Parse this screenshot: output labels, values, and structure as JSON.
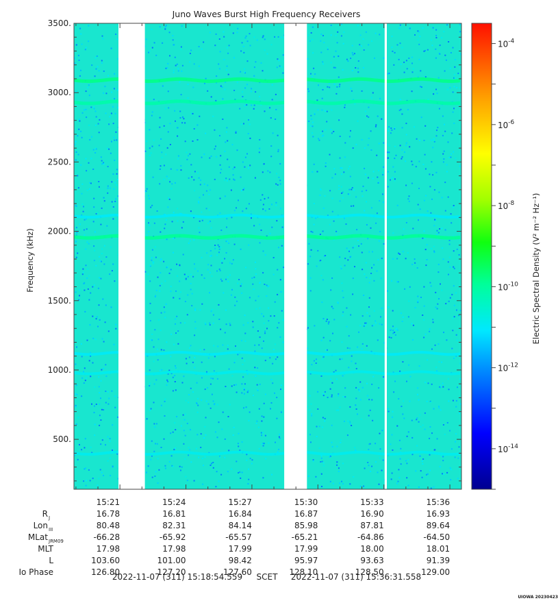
{
  "chart_data": {
    "type": "heatmap",
    "title": "Juno Waves Burst High Frequency Receivers",
    "ylabel": "Frequency (kHz)",
    "colorbar_label": "Electric Spectral Density (V² m⁻² Hz⁻¹)",
    "ylim": [
      140,
      3500
    ],
    "y_ticks": [
      {
        "value": 500,
        "label": "500."
      },
      {
        "value": 1000,
        "label": "1000."
      },
      {
        "value": 1500,
        "label": "1500."
      },
      {
        "value": 2000,
        "label": "2000."
      },
      {
        "value": 2500,
        "label": "2500."
      },
      {
        "value": 3000,
        "label": "3000."
      },
      {
        "value": 3500,
        "label": "3500."
      }
    ],
    "colorbar_log_range": [
      -15,
      -3.5
    ],
    "colorbar_ticks": [
      {
        "exp": -14,
        "base": "10",
        "sup": "-14"
      },
      {
        "exp": -12,
        "base": "10",
        "sup": "-12"
      },
      {
        "exp": -10,
        "base": "10",
        "sup": "-10"
      },
      {
        "exp": -8,
        "base": "10",
        "sup": "-8"
      },
      {
        "exp": -6,
        "base": "10",
        "sup": "-6"
      },
      {
        "exp": -4,
        "base": "10",
        "sup": "-4"
      }
    ],
    "time_range": [
      "15:18:54.559",
      "15:36:31.558"
    ],
    "x_ticks": [
      "15:21",
      "15:24",
      "15:27",
      "15:30",
      "15:33",
      "15:36"
    ],
    "data_gaps": [
      {
        "start": "15:20:56",
        "end": "15:22:08"
      },
      {
        "start": "15:28:28",
        "end": "15:29:30"
      },
      {
        "start": "15:33:02",
        "end": "15:33:08"
      }
    ],
    "background_log_level": -11.6,
    "emission_bands": [
      {
        "freq_khz": 3090,
        "log_level": -9.8
      },
      {
        "freq_khz": 2930,
        "log_level": -10.1
      },
      {
        "freq_khz": 2110,
        "log_level": -11.0
      },
      {
        "freq_khz": 1960,
        "log_level": -9.9
      },
      {
        "freq_khz": 1120,
        "log_level": -11.0
      },
      {
        "freq_khz": 980,
        "log_level": -10.9
      },
      {
        "freq_khz": 400,
        "log_level": -10.9
      }
    ],
    "ephemeris": {
      "rows": [
        {
          "label": "R",
          "sub": "J",
          "values": [
            "16.78",
            "16.81",
            "16.84",
            "16.87",
            "16.90",
            "16.93"
          ]
        },
        {
          "label": "Lon",
          "sub": "III",
          "values": [
            "80.48",
            "82.31",
            "84.14",
            "85.98",
            "87.81",
            "89.64"
          ]
        },
        {
          "label": "MLat",
          "sub": "JRM09",
          "values": [
            "-66.28",
            "-65.92",
            "-65.57",
            "-65.21",
            "-64.86",
            "-64.50"
          ]
        },
        {
          "label": "MLT",
          "sub": "",
          "values": [
            "17.98",
            "17.98",
            "17.99",
            "17.99",
            "18.00",
            "18.01"
          ]
        },
        {
          "label": "L",
          "sub": "",
          "values": [
            "103.60",
            "101.00",
            "98.42",
            "95.97",
            "93.63",
            "91.39"
          ]
        },
        {
          "label": "Io Phase",
          "sub": "",
          "values": [
            "126.80",
            "127.20",
            "127.60",
            "128.10",
            "128.50",
            "129.00"
          ]
        }
      ]
    },
    "time_footer": {
      "start": "2022-11-07 (311) 15:18:54.559",
      "label": "SCET",
      "end": "2022-11-07 (311) 15:36:31.558"
    },
    "credit": "UIOWA 20230423"
  }
}
